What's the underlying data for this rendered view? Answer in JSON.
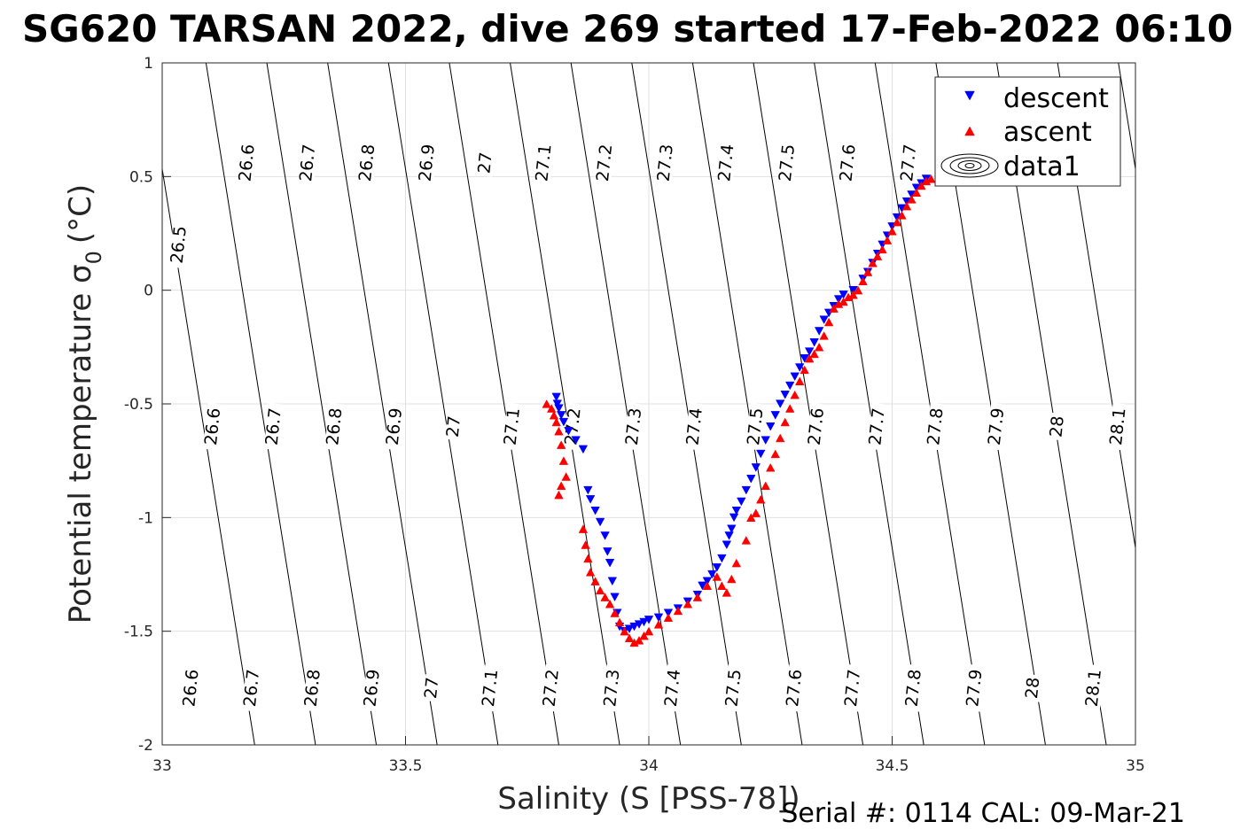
{
  "chart_data": {
    "type": "scatter",
    "title": "SG620 TARSAN 2022, dive 269 started 17-Feb-2022 06:10",
    "xlabel": "Salinity (S [PSS-78])",
    "ylabel": "Potential temperature σ",
    "ylabel_sub": "0",
    "ylabel_unit": "(°C)",
    "footer": "Serial #: 0114  CAL: 09-Mar-21",
    "xlim": [
      33,
      35
    ],
    "ylim": [
      -2,
      1
    ],
    "xticks": [
      "33",
      "33.5",
      "34",
      "34.5",
      "35"
    ],
    "yticks": [
      "1",
      "0.5",
      "0",
      "-0.5",
      "-1",
      "-1.5",
      "-2"
    ],
    "grid": true,
    "legend_position": "top-right",
    "legend": [
      {
        "label": "descent",
        "marker": "triangle-down",
        "color": "#0000ff"
      },
      {
        "label": "ascent",
        "marker": "triangle-up",
        "color": "#ff0000"
      },
      {
        "label": "data1",
        "marker": "contour",
        "color": "#000000"
      }
    ],
    "contours": {
      "levels": [
        26.5,
        26.6,
        26.7,
        26.8,
        26.9,
        27,
        27.1,
        27.2,
        27.3,
        27.4,
        27.5,
        27.6,
        27.7,
        27.8,
        27.9,
        28,
        28.1
      ],
      "labels": [
        {
          "text": "26.5",
          "s": 33.035,
          "t": 0.2
        },
        {
          "text": "26.6",
          "s": 33.175,
          "t": 0.56
        },
        {
          "text": "26.7",
          "s": 33.3,
          "t": 0.56
        },
        {
          "text": "26.8",
          "s": 33.422,
          "t": 0.56
        },
        {
          "text": "26.9",
          "s": 33.545,
          "t": 0.56
        },
        {
          "text": "27",
          "s": 33.665,
          "t": 0.56
        },
        {
          "text": "27.1",
          "s": 33.785,
          "t": 0.56
        },
        {
          "text": "27.2",
          "s": 33.91,
          "t": 0.56
        },
        {
          "text": "27.3",
          "s": 34.035,
          "t": 0.56
        },
        {
          "text": "27.4",
          "s": 34.16,
          "t": 0.56
        },
        {
          "text": "27.5",
          "s": 34.285,
          "t": 0.56
        },
        {
          "text": "27.6",
          "s": 34.41,
          "t": 0.56
        },
        {
          "text": "27.7",
          "s": 34.535,
          "t": 0.56
        },
        {
          "text": "26.6",
          "s": 33.105,
          "t": -0.6
        },
        {
          "text": "26.7",
          "s": 33.23,
          "t": -0.6
        },
        {
          "text": "26.8",
          "s": 33.355,
          "t": -0.6
        },
        {
          "text": "26.9",
          "s": 33.478,
          "t": -0.6
        },
        {
          "text": "27",
          "s": 33.6,
          "t": -0.6
        },
        {
          "text": "27.1",
          "s": 33.72,
          "t": -0.6
        },
        {
          "text": "27.2",
          "s": 33.845,
          "t": -0.6
        },
        {
          "text": "27.3",
          "s": 33.97,
          "t": -0.6
        },
        {
          "text": "27.4",
          "s": 34.095,
          "t": -0.6
        },
        {
          "text": "27.5",
          "s": 34.22,
          "t": -0.6
        },
        {
          "text": "27.6",
          "s": 34.345,
          "t": -0.6
        },
        {
          "text": "27.7",
          "s": 34.47,
          "t": -0.6
        },
        {
          "text": "27.8",
          "s": 34.59,
          "t": -0.6
        },
        {
          "text": "27.9",
          "s": 34.715,
          "t": -0.6
        },
        {
          "text": "28",
          "s": 34.84,
          "t": -0.6
        },
        {
          "text": "28.1",
          "s": 34.965,
          "t": -0.6
        },
        {
          "text": "26.6",
          "s": 33.06,
          "t": -1.75
        },
        {
          "text": "26.7",
          "s": 33.185,
          "t": -1.75
        },
        {
          "text": "26.8",
          "s": 33.31,
          "t": -1.75
        },
        {
          "text": "26.9",
          "s": 33.432,
          "t": -1.75
        },
        {
          "text": "27",
          "s": 33.555,
          "t": -1.75
        },
        {
          "text": "27.1",
          "s": 33.675,
          "t": -1.75
        },
        {
          "text": "27.2",
          "s": 33.8,
          "t": -1.75
        },
        {
          "text": "27.3",
          "s": 33.925,
          "t": -1.75
        },
        {
          "text": "27.4",
          "s": 34.05,
          "t": -1.75
        },
        {
          "text": "27.5",
          "s": 34.175,
          "t": -1.75
        },
        {
          "text": "27.6",
          "s": 34.3,
          "t": -1.75
        },
        {
          "text": "27.7",
          "s": 34.42,
          "t": -1.75
        },
        {
          "text": "27.8",
          "s": 34.545,
          "t": -1.75
        },
        {
          "text": "27.9",
          "s": 34.67,
          "t": -1.75
        },
        {
          "text": "28",
          "s": 34.79,
          "t": -1.75
        },
        {
          "text": "28.1",
          "s": 34.915,
          "t": -1.75
        }
      ]
    },
    "series": [
      {
        "name": "descent",
        "marker": "triangle-down",
        "color": "#0000ff",
        "x": [
          33.81,
          33.812,
          33.815,
          33.82,
          33.825,
          33.835,
          33.85,
          33.865,
          33.875,
          33.88,
          33.89,
          33.9,
          33.91,
          33.915,
          33.92,
          33.925,
          33.93,
          33.935,
          33.94,
          33.95,
          33.96,
          33.97,
          33.98,
          33.99,
          34.0,
          34.02,
          34.04,
          34.06,
          34.08,
          34.1,
          34.11,
          34.12,
          34.13,
          34.14,
          34.15,
          34.16,
          34.165,
          34.17,
          34.175,
          34.18,
          34.19,
          34.2,
          34.21,
          34.22,
          34.23,
          34.24,
          34.25,
          34.26,
          34.27,
          34.28,
          34.29,
          34.3,
          34.31,
          34.32,
          34.33,
          34.34,
          34.35,
          34.36,
          34.37,
          34.38,
          34.39,
          34.4,
          34.42,
          34.44,
          34.45,
          34.46,
          34.47,
          34.48,
          34.49,
          34.5,
          34.51,
          34.52,
          34.53,
          34.54,
          34.55,
          34.56,
          34.57
        ],
        "y": [
          -0.47,
          -0.5,
          -0.52,
          -0.55,
          -0.58,
          -0.62,
          -0.66,
          -0.7,
          -0.88,
          -0.92,
          -0.97,
          -1.02,
          -1.08,
          -1.15,
          -1.2,
          -1.28,
          -1.35,
          -1.42,
          -1.48,
          -1.5,
          -1.49,
          -1.48,
          -1.47,
          -1.46,
          -1.45,
          -1.44,
          -1.42,
          -1.4,
          -1.37,
          -1.34,
          -1.3,
          -1.28,
          -1.25,
          -1.22,
          -1.18,
          -1.12,
          -1.08,
          -1.05,
          -1.0,
          -0.97,
          -0.93,
          -0.88,
          -0.83,
          -0.78,
          -0.72,
          -0.66,
          -0.6,
          -0.55,
          -0.5,
          -0.46,
          -0.42,
          -0.38,
          -0.34,
          -0.3,
          -0.27,
          -0.23,
          -0.18,
          -0.13,
          -0.1,
          -0.07,
          -0.04,
          -0.02,
          0.0,
          0.05,
          0.08,
          0.12,
          0.16,
          0.2,
          0.24,
          0.28,
          0.32,
          0.36,
          0.39,
          0.42,
          0.45,
          0.47,
          0.49
        ]
      },
      {
        "name": "ascent",
        "marker": "triangle-up",
        "color": "#ff0000",
        "x": [
          33.79,
          33.8,
          33.805,
          33.81,
          33.815,
          33.82,
          33.825,
          33.83,
          33.82,
          33.815,
          33.865,
          33.87,
          33.875,
          33.88,
          33.89,
          33.9,
          33.91,
          33.92,
          33.93,
          33.94,
          33.95,
          33.96,
          33.97,
          33.98,
          33.99,
          34.0,
          34.02,
          34.04,
          34.06,
          34.08,
          34.1,
          34.12,
          34.14,
          34.15,
          34.16,
          34.17,
          34.18,
          34.2,
          34.21,
          34.22,
          34.23,
          34.24,
          34.25,
          34.26,
          34.27,
          34.28,
          34.29,
          34.3,
          34.31,
          34.32,
          34.33,
          34.34,
          34.35,
          34.36,
          34.37,
          34.38,
          34.39,
          34.4,
          34.41,
          34.42,
          34.43,
          34.44,
          34.45,
          34.46,
          34.47,
          34.48,
          34.49,
          34.5,
          34.51,
          34.52,
          34.53,
          34.54,
          34.55,
          34.56,
          34.57,
          34.58
        ],
        "y": [
          -0.5,
          -0.52,
          -0.55,
          -0.58,
          -0.62,
          -0.68,
          -0.75,
          -0.82,
          -0.86,
          -0.9,
          -1.05,
          -1.12,
          -1.18,
          -1.24,
          -1.28,
          -1.32,
          -1.35,
          -1.38,
          -1.42,
          -1.46,
          -1.5,
          -1.53,
          -1.55,
          -1.54,
          -1.52,
          -1.5,
          -1.47,
          -1.44,
          -1.41,
          -1.38,
          -1.35,
          -1.3,
          -1.26,
          -1.3,
          -1.33,
          -1.27,
          -1.2,
          -1.1,
          -1.0,
          -0.98,
          -0.92,
          -0.86,
          -0.78,
          -0.72,
          -0.65,
          -0.58,
          -0.52,
          -0.46,
          -0.4,
          -0.35,
          -0.3,
          -0.28,
          -0.25,
          -0.2,
          -0.14,
          -0.08,
          -0.06,
          -0.05,
          -0.03,
          -0.02,
          0.0,
          0.04,
          0.08,
          0.12,
          0.15,
          0.18,
          0.22,
          0.26,
          0.3,
          0.33,
          0.37,
          0.4,
          0.43,
          0.46,
          0.48,
          0.49
        ]
      }
    ]
  }
}
